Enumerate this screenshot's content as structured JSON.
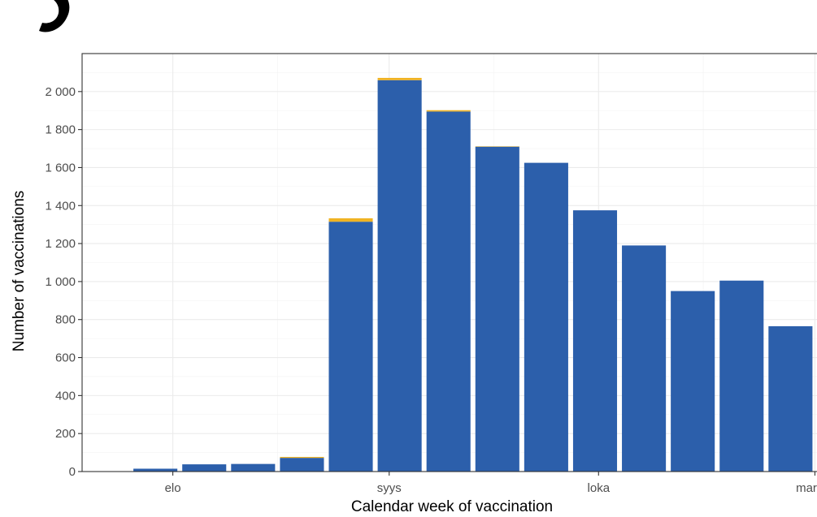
{
  "chart_data": {
    "type": "bar",
    "xlabel": "Calendar week of vaccination",
    "ylabel": "Number of vaccinations",
    "ylim": [
      0,
      2200
    ],
    "y_ticks": [
      {
        "value": 0,
        "label": "0"
      },
      {
        "value": 200,
        "label": "200"
      },
      {
        "value": 400,
        "label": "400"
      },
      {
        "value": 600,
        "label": "600"
      },
      {
        "value": 800,
        "label": "800"
      },
      {
        "value": 1000,
        "label": "1 000"
      },
      {
        "value": 1200,
        "label": "1 200"
      },
      {
        "value": 1400,
        "label": "1 400"
      },
      {
        "value": 1600,
        "label": "1 600"
      },
      {
        "value": 1800,
        "label": "1 800"
      },
      {
        "value": 2000,
        "label": "2 000"
      }
    ],
    "x_ticks": [
      {
        "date": "2021-08-01",
        "label": "elo"
      },
      {
        "date": "2021-09-01",
        "label": "syys"
      },
      {
        "date": "2021-10-01",
        "label": "loka"
      },
      {
        "date": "2021-11-01",
        "label": "marras"
      }
    ],
    "xlim": [
      "2021-07-19",
      "2021-11-02"
    ],
    "x_unit": "week start date",
    "categories": [
      "2021-07-26",
      "2021-08-02",
      "2021-08-09",
      "2021-08-16",
      "2021-08-23",
      "2021-08-30",
      "2021-09-06",
      "2021-09-13",
      "2021-09-20",
      "2021-09-27",
      "2021-10-04",
      "2021-10-11",
      "2021-10-18",
      "2021-10-25"
    ],
    "series": [
      {
        "color": "#2c5fab",
        "values": [
          15,
          38,
          40,
          72,
          1315,
          2060,
          1895,
          1710,
          1625,
          1375,
          1190,
          950,
          1005,
          765
        ]
      },
      {
        "color": "#f0b323",
        "values": [
          0,
          0,
          0,
          5,
          18,
          12,
          7,
          2,
          0,
          0,
          0,
          0,
          0,
          0
        ]
      }
    ],
    "grid": true,
    "legend": "none"
  }
}
